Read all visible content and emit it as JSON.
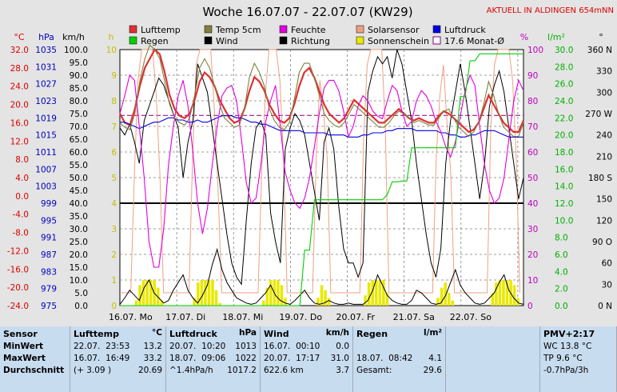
{
  "header": {
    "title": "Woche 16.07.07 - 22.07.07 (KW29)",
    "notice": "AKTUELL IN ALDINGEN 654mNN"
  },
  "colors": {
    "lufttemp": "#e03030",
    "temp5cm": "#808040",
    "feuchte": "#e000e0",
    "solarsensor": "#f0a080",
    "luftdruck": "#0000e0",
    "regen": "#00d000",
    "wind": "#000000",
    "richtung": "#000000",
    "sonnenschein": "#e8e800",
    "monat": "#800080"
  },
  "legend": [
    {
      "label": "Lufttemp",
      "color": "#e03030",
      "kind": "box"
    },
    {
      "label": "Temp 5cm",
      "color": "#808040",
      "kind": "box"
    },
    {
      "label": "Feuchte",
      "color": "#e000e0",
      "kind": "box"
    },
    {
      "label": "Solarsensor",
      "color": "#f0a080",
      "kind": "box"
    },
    {
      "label": "Luftdruck",
      "color": "#0000e0",
      "kind": "box"
    },
    {
      "label": "Regen",
      "color": "#00d000",
      "kind": "box"
    },
    {
      "label": "Wind",
      "color": "#000000",
      "kind": "box"
    },
    {
      "label": "Richtung",
      "color": "#000000",
      "kind": "box"
    },
    {
      "label": "Sonnenschein",
      "color": "#e8e800",
      "kind": "box"
    },
    {
      "label": "17.6 Monat-Ø",
      "color": "#800080",
      "kind": "outline"
    }
  ],
  "chart_data": {
    "type": "line",
    "x_labels": [
      "16.07. Mo",
      "17.07. Di",
      "18.07. Mi",
      "19.07. Do",
      "20.07. Fr",
      "21.07. Sa",
      "22.07. So"
    ],
    "axes": {
      "temp_c": {
        "unit": "°C",
        "min": -24.0,
        "max": 32.0,
        "ticks": [
          "-24.0",
          "-20.0",
          "-16.0",
          "-12.0",
          "-8.0",
          "-4.0",
          "0.0",
          "4.0",
          "8.0",
          "12.0",
          "16.0",
          "20.0",
          "24.0",
          "28.0",
          "32.0"
        ],
        "color": "#e00000"
      },
      "pressure_hpa": {
        "unit": "hPa",
        "min": 975,
        "max": 1035,
        "ticks": [
          "975",
          "979",
          "983",
          "987",
          "991",
          "995",
          "999",
          "1003",
          "1007",
          "1011",
          "1015",
          "1019",
          "1023",
          "1027",
          "1031",
          "1035"
        ],
        "color": "#0000c0"
      },
      "wind_kmh": {
        "unit": "km/h",
        "min": 0.0,
        "max": 100.0,
        "ticks": [
          "0.0",
          "5.0",
          "10.0",
          "15.0",
          "20.0",
          "25.0",
          "30.0",
          "35.0",
          "40.0",
          "45.0",
          "50.0",
          "55.0",
          "60.0",
          "65.0",
          "70.0",
          "75.0",
          "80.0",
          "85.0",
          "90.0",
          "95.0",
          "100.0"
        ],
        "color": "#000000"
      },
      "sunshine_h": {
        "unit": "h",
        "min": 0,
        "max": 10,
        "ticks": [
          "0",
          "1",
          "2",
          "3",
          "4",
          "5",
          "6",
          "7",
          "8",
          "9",
          "10"
        ],
        "color": "#c0c000"
      },
      "humidity_pct": {
        "unit": "%",
        "min": 0,
        "max": 100,
        "ticks": [
          "0",
          "10",
          "20",
          "30",
          "40",
          "50",
          "60",
          "70",
          "80",
          "90",
          "100"
        ],
        "color": "#c000c0"
      },
      "rain_lm2": {
        "unit": "l/m²",
        "min": 0.0,
        "max": 30.0,
        "ticks": [
          "0.0",
          "2.0",
          "4.0",
          "6.0",
          "8.0",
          "10.0",
          "12.0",
          "14.0",
          "16.0",
          "18.0",
          "20.0",
          "22.0",
          "24.0",
          "26.0",
          "28.0",
          "30.0"
        ],
        "color": "#00b000"
      },
      "direction_deg": {
        "unit": "°",
        "min": 0,
        "max": 360,
        "ticks": [
          "0",
          "30",
          "60",
          "90",
          "120",
          "150",
          "180",
          "210",
          "240",
          "270",
          "300",
          "330",
          "360"
        ],
        "tick_labels": [
          "0  N",
          "30",
          "60",
          "90  O",
          "120",
          "150",
          "180 S",
          "210",
          "240",
          "270 W",
          "300",
          "330",
          "360 N"
        ]
      }
    },
    "temp_max_line": 32.0,
    "series": [
      {
        "name": "Lufttemp",
        "axis": "temp_c",
        "color": "#e03030",
        "values": [
          18,
          16,
          15.5,
          19,
          24,
          28,
          30,
          32,
          31,
          27,
          22,
          19,
          17.5,
          17,
          18,
          21,
          25,
          27,
          26,
          24,
          21,
          19,
          17,
          16,
          16.5,
          19,
          23,
          26,
          25,
          23,
          20,
          18,
          16.5,
          16,
          17,
          20,
          24,
          27,
          28,
          26,
          23,
          20,
          18,
          17,
          16,
          17,
          19,
          21,
          20,
          19,
          18,
          17,
          16,
          16,
          17,
          18,
          19,
          18,
          17,
          16.5,
          17,
          16.5,
          16,
          16,
          17.5,
          18.5,
          18,
          17,
          16,
          15,
          14,
          14.5,
          16,
          19,
          22,
          20,
          18,
          16,
          15,
          14,
          14,
          16.5
        ]
      },
      {
        "name": "Luftdruck",
        "axis": "pressure_hpa",
        "color": "#0000e0",
        "values": [
          1018,
          1018,
          1017.5,
          1017,
          1016.5,
          1017,
          1017.5,
          1018,
          1018,
          1018.5,
          1019,
          1019,
          1018.5,
          1018.5,
          1018,
          1018,
          1018.5,
          1018,
          1018,
          1018.5,
          1019,
          1019.5,
          1019.5,
          1019.5,
          1019,
          1019,
          1018.5,
          1018,
          1018,
          1017.5,
          1017.5,
          1017,
          1016.5,
          1016,
          1016,
          1016,
          1016,
          1016,
          1015.5,
          1015.5,
          1015.5,
          1015.5,
          1015.5,
          1015,
          1015,
          1015,
          1015,
          1014.5,
          1014.5,
          1014.5,
          1015,
          1015,
          1015.5,
          1015.5,
          1015.5,
          1016,
          1016,
          1016.5,
          1016.5,
          1016.5,
          1016.5,
          1016,
          1016,
          1016,
          1016,
          1016,
          1015.5,
          1015.5,
          1015,
          1015,
          1014.5,
          1014.5,
          1015,
          1015,
          1015.5,
          1016,
          1016,
          1016,
          1015.5,
          1015,
          1014.5,
          1014.5,
          1014.5,
          1014.5
        ]
      },
      {
        "name": "Feuchte",
        "axis": "humidity_pct",
        "color": "#e000e0",
        "values": [
          75,
          82,
          90,
          88,
          70,
          50,
          25,
          15,
          15,
          30,
          55,
          70,
          82,
          88,
          78,
          60,
          40,
          28,
          38,
          55,
          70,
          82,
          85,
          86,
          80,
          65,
          48,
          40,
          42,
          55,
          72,
          80,
          86,
          70,
          52,
          45,
          40,
          38,
          42,
          50,
          62,
          75,
          85,
          88,
          88,
          84,
          76,
          66,
          70,
          78,
          82,
          80,
          76,
          74,
          73,
          80,
          86,
          84,
          76,
          70,
          72,
          80,
          84,
          82,
          78,
          72,
          68,
          62,
          58,
          64,
          74,
          84,
          90,
          86,
          70,
          55,
          45,
          40,
          42,
          50,
          65,
          80,
          88,
          84
        ]
      },
      {
        "name": "Temp 5cm",
        "axis": "temp_c",
        "color": "#808040",
        "values": [
          16,
          15,
          14.5,
          18,
          25,
          30,
          33,
          32,
          30,
          25,
          20,
          17,
          16,
          15.5,
          17,
          22,
          28,
          30,
          28,
          24,
          20,
          17,
          16,
          15,
          15.5,
          19,
          26,
          29,
          27,
          24,
          19,
          16.5,
          15,
          14.5,
          16,
          21,
          27,
          29,
          29,
          26,
          22,
          18,
          16.5,
          15.5,
          15,
          16,
          18,
          20,
          19,
          18,
          17,
          16,
          15,
          15,
          16,
          17.5,
          18.5,
          18,
          17,
          16,
          16.5,
          16,
          15.5,
          15.5,
          17,
          18.5,
          19,
          17,
          15,
          14,
          13,
          14,
          16,
          20,
          25,
          22,
          18,
          15,
          14,
          13,
          13,
          16
        ]
      },
      {
        "name": "Regen",
        "axis": "rain_lm2",
        "color": "#00d000",
        "values": [
          0,
          0,
          0,
          0,
          0,
          0,
          0,
          0,
          0,
          0,
          0,
          0,
          0,
          0,
          0,
          0,
          0,
          0,
          0,
          0,
          0,
          0,
          0,
          0,
          0,
          0,
          0,
          0,
          0,
          0,
          0,
          0,
          0,
          0,
          0,
          0,
          0,
          0,
          6.5,
          6.5,
          12.4,
          12.4,
          12.4,
          12.4,
          12.4,
          12.4,
          12.4,
          12.4,
          12.4,
          12.4,
          12.4,
          12.4,
          12.4,
          12.4,
          12.4,
          13,
          14.5,
          14.5,
          14.6,
          14.6,
          18.5,
          18.5,
          18.5,
          18.5,
          18.5,
          18.5,
          18.5,
          18.5,
          18.5,
          18.5,
          24.5,
          24.5,
          28.7,
          28.7,
          29.5,
          29.5,
          29.5,
          29.5,
          29.5,
          29.5,
          29.5,
          29.5,
          29.5,
          29.5
        ]
      }
    ],
    "sunshine_bars": [
      0,
      0,
      0,
      0,
      0.2,
      0.8,
      1,
      1,
      1,
      1,
      0.7,
      0.2,
      0,
      0,
      0,
      0,
      0,
      0,
      0,
      0,
      0.3,
      0.9,
      1,
      1,
      1,
      1,
      0.6,
      0.1,
      0,
      0,
      0,
      0,
      0,
      0,
      0,
      0,
      0,
      0,
      0,
      0.2,
      0.7,
      1,
      1,
      1,
      0.8,
      0.3,
      0,
      0,
      0,
      0,
      0,
      0,
      0,
      0,
      0.3,
      0.8,
      0.6,
      0.3,
      0,
      0,
      0,
      0,
      0,
      0,
      0,
      0,
      0,
      0.4,
      0.9,
      1,
      1,
      1,
      1,
      0.5,
      0,
      0,
      0,
      0,
      0,
      0,
      0,
      0,
      0,
      0,
      0,
      0,
      0,
      0.3,
      0.7,
      0.9,
      0.5,
      0.2,
      0,
      0,
      0,
      0,
      0,
      0,
      0,
      0,
      0,
      0,
      0.5,
      0.9,
      1,
      1,
      1,
      1,
      0.8,
      0.3,
      0
    ],
    "wind_trace": [
      0.5,
      3,
      6,
      4,
      2,
      7,
      10,
      5,
      3,
      1,
      2,
      6,
      9,
      12,
      6,
      3,
      1,
      4,
      8,
      16,
      22,
      14,
      9,
      6,
      3,
      2,
      1,
      0.5,
      1,
      3,
      5,
      8,
      4,
      2,
      1,
      0.5,
      2,
      4,
      6,
      3,
      1,
      0.5,
      1,
      2,
      1,
      0.5,
      0.5,
      1,
      0.5,
      0.5,
      0.5,
      2,
      6,
      12,
      8,
      4,
      2,
      1,
      0.5,
      0.5,
      2,
      6,
      5,
      3,
      1,
      0.5,
      1,
      4,
      9,
      14,
      8,
      5,
      3,
      1,
      0.5,
      1,
      3,
      5,
      9,
      12,
      6,
      3,
      1,
      0.5
    ],
    "direction_trace": [
      250,
      240,
      255,
      230,
      200,
      260,
      280,
      300,
      320,
      310,
      290,
      270,
      250,
      180,
      230,
      260,
      340,
      320,
      300,
      250,
      200,
      150,
      100,
      60,
      40,
      30,
      120,
      200,
      250,
      260,
      240,
      130,
      90,
      60,
      220,
      250,
      270,
      260,
      240,
      200,
      160,
      120,
      230,
      250,
      220,
      140,
      80,
      60,
      60,
      40,
      60,
      300,
      330,
      350,
      340,
      350,
      320,
      360,
      340,
      300,
      260,
      200,
      150,
      100,
      60,
      40,
      80,
      200,
      260,
      300,
      340,
      300,
      250,
      200,
      150,
      200,
      280,
      310,
      330,
      300,
      250,
      200,
      150,
      180
    ],
    "thresholds": [
      {
        "axis": "pressure_hpa",
        "value": 999,
        "color": "#000000"
      },
      {
        "axis": "temp_c",
        "value": 17.6,
        "color": "#800080"
      }
    ]
  },
  "table": {
    "columns": [
      {
        "header": "Sensor",
        "unit": "",
        "rows": [
          "MinWert",
          "MaxWert",
          "Durchschnitt"
        ]
      },
      {
        "header": "Lufttemp",
        "unit": "°C",
        "rows": [
          [
            "22.07.  23:53",
            "13.2"
          ],
          [
            "16.07.  16:49",
            "33.2"
          ],
          [
            "(+ 3.09 )",
            "20.69"
          ]
        ]
      },
      {
        "header": "Luftdruck",
        "unit": "hPa",
        "rows": [
          [
            "20.07.  10:20",
            "1013"
          ],
          [
            "18.07.  09:06",
            "1022"
          ],
          [
            "^1.4hPa/h",
            "1017.2"
          ]
        ]
      },
      {
        "header": "Wind",
        "unit": "km/h",
        "rows": [
          [
            "16.07.  00:10",
            "0.0"
          ],
          [
            "20.07.  17:17",
            "31.0"
          ],
          [
            "622.6 km",
            "3.7"
          ]
        ]
      },
      {
        "header": "Regen",
        "unit": "l/m²",
        "rows": [
          [
            "",
            ""
          ],
          [
            "18.07.  08:42",
            "4.1"
          ],
          [
            "Gesamt:",
            "29.6"
          ]
        ]
      },
      {
        "header": "PMV+2:17",
        "unit": "",
        "rows": [
          "WC 13.8 °C",
          "TP 9.6 °C",
          "-0.7hPa/3h"
        ]
      }
    ]
  }
}
